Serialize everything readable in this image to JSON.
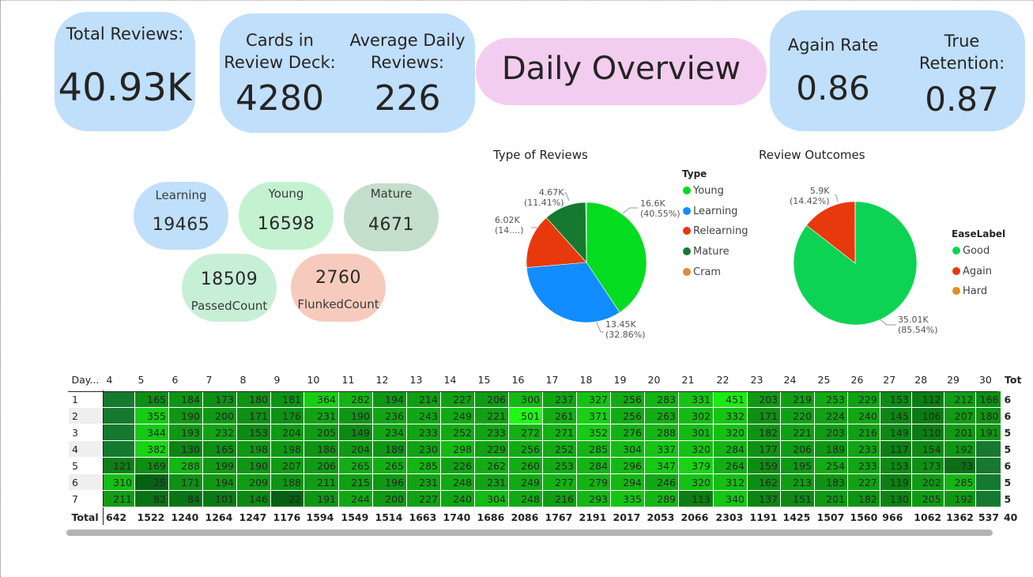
{
  "kpis": {
    "total_reviews": {
      "label": "Total Reviews:",
      "value": "40.93K"
    },
    "cards_in_deck": {
      "label_line1": "Cards in",
      "label_line2": "Review Deck:",
      "value": "4280"
    },
    "avg_daily": {
      "label_line1": "Average Daily",
      "label_line2": "Reviews:",
      "value": "226"
    },
    "title": "Daily Overview",
    "again_rate": {
      "label": "Again Rate",
      "value": "0.86"
    },
    "true_retention": {
      "label_line1": "True",
      "label_line2": "Retention:",
      "value": "0.87"
    }
  },
  "pills": {
    "learning": {
      "label": "Learning",
      "value": "19465",
      "color": "#c0dffa"
    },
    "young": {
      "label": "Young",
      "value": "16598",
      "color": "#c4f2d1"
    },
    "mature": {
      "label": "Mature",
      "value": "4671",
      "color": "#c3dfcb"
    },
    "passed": {
      "label": "PassedCount",
      "value": "18509",
      "color": "#c7efd6"
    },
    "flunked": {
      "label": "FlunkedCount",
      "value": "2760",
      "color": "#f6cbbd"
    }
  },
  "chart_data": [
    {
      "type": "pie",
      "title": "Type of Reviews",
      "legend_title": "Type",
      "legend_position": "right",
      "slices": [
        {
          "label": "Young",
          "value": 16.6,
          "display": "16.6K",
          "pct": "(40.55%)",
          "color": "#04dc20"
        },
        {
          "label": "Learning",
          "value": 13.45,
          "display": "13.45K",
          "pct": "(32.86%)",
          "color": "#118dff"
        },
        {
          "label": "Relearning",
          "value": 6.02,
          "display": "6.02K",
          "pct": "(14....)",
          "color": "#e8380d"
        },
        {
          "label": "Mature",
          "value": 4.67,
          "display": "4.67K",
          "pct": "(11.41%)",
          "color": "#157a2f"
        },
        {
          "label": "Cram",
          "value": 0.08,
          "display": "",
          "pct": "",
          "color": "#e08d2c"
        }
      ]
    },
    {
      "type": "pie",
      "title": "Review Outcomes",
      "legend_title": "EaseLabel",
      "legend_position": "right",
      "slices": [
        {
          "label": "Good",
          "value": 35.01,
          "display": "35.01K",
          "pct": "(85.54%)",
          "color": "#0dd354"
        },
        {
          "label": "Again",
          "value": 5.9,
          "display": "5.9K",
          "pct": "(14.42%)",
          "color": "#e8380d"
        },
        {
          "label": "Hard",
          "value": 0.02,
          "display": "",
          "pct": "",
          "color": "#e08d2c"
        }
      ]
    },
    {
      "type": "table",
      "corner_label": "Day...",
      "total_label": "Total",
      "total_col_label": "Tot",
      "columns": [
        "4",
        "5",
        "6",
        "7",
        "8",
        "9",
        "10",
        "11",
        "12",
        "13",
        "14",
        "15",
        "16",
        "17",
        "18",
        "19",
        "20",
        "21",
        "22",
        "23",
        "24",
        "25",
        "26",
        "27",
        "28",
        "29",
        "30"
      ],
      "rows": [
        {
          "day": "1",
          "values": [
            null,
            165,
            184,
            173,
            180,
            181,
            364,
            282,
            194,
            214,
            227,
            206,
            300,
            237,
            327,
            256,
            283,
            331,
            451,
            203,
            219,
            253,
            229,
            153,
            112,
            212,
            166
          ],
          "total": "6"
        },
        {
          "day": "2",
          "values": [
            null,
            355,
            190,
            200,
            171,
            176,
            231,
            190,
            236,
            243,
            249,
            221,
            501,
            261,
            371,
            256,
            263,
            302,
            332,
            171,
            220,
            224,
            240,
            145,
            106,
            207,
            180
          ],
          "total": "6"
        },
        {
          "day": "3",
          "values": [
            null,
            344,
            193,
            232,
            153,
            204,
            205,
            149,
            234,
            233,
            252,
            233,
            272,
            271,
            352,
            276,
            288,
            301,
            320,
            182,
            221,
            203,
            216,
            149,
            110,
            201,
            191
          ],
          "total": "5"
        },
        {
          "day": "4",
          "values": [
            null,
            382,
            130,
            165,
            198,
            198,
            186,
            204,
            189,
            230,
            298,
            229,
            256,
            252,
            285,
            304,
            337,
            320,
            284,
            177,
            206,
            189,
            233,
            117,
            154,
            192,
            null
          ],
          "total": "5"
        },
        {
          "day": "5",
          "values": [
            121,
            169,
            288,
            199,
            190,
            207,
            206,
            265,
            265,
            285,
            226,
            262,
            260,
            253,
            284,
            296,
            347,
            379,
            264,
            159,
            195,
            254,
            233,
            153,
            173,
            73,
            null
          ],
          "total": "6"
        },
        {
          "day": "6",
          "values": [
            310,
            25,
            171,
            194,
            209,
            188,
            211,
            215,
            196,
            231,
            248,
            231,
            249,
            277,
            279,
            294,
            246,
            320,
            312,
            162,
            213,
            183,
            227,
            119,
            202,
            285,
            null
          ],
          "total": "5"
        },
        {
          "day": "7",
          "values": [
            211,
            82,
            84,
            101,
            146,
            22,
            191,
            244,
            200,
            227,
            240,
            304,
            248,
            216,
            293,
            335,
            289,
            113,
            340,
            137,
            151,
            201,
            182,
            130,
            205,
            192,
            null
          ],
          "total": "5"
        }
      ],
      "totals": [
        642,
        1522,
        1240,
        1264,
        1247,
        1176,
        1594,
        1549,
        1514,
        1663,
        1740,
        1686,
        2086,
        1767,
        2191,
        2017,
        2053,
        2066,
        2303,
        1191,
        1425,
        1507,
        1560,
        966,
        1062,
        1362,
        537
      ],
      "grand_total": "40"
    }
  ]
}
